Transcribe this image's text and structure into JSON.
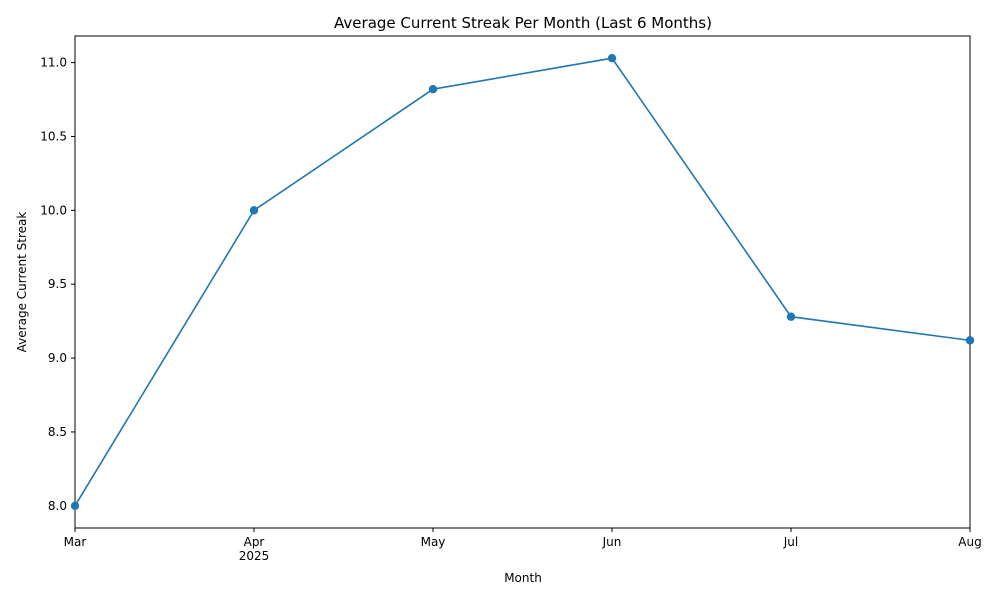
{
  "chart_data": {
    "type": "line",
    "title": "Average Current Streak Per Month (Last 6 Months)",
    "xlabel": "Month",
    "ylabel": "Average Current Streak",
    "x": [
      "Mar",
      "Apr",
      "May",
      "Jun",
      "Jul",
      "Aug"
    ],
    "x_year_label": "2025",
    "series": [
      {
        "values": [
          8.0,
          10.0,
          10.82,
          11.03,
          9.28,
          9.12
        ]
      }
    ],
    "ylim": [
      7.85,
      11.18
    ],
    "yticks": [
      "8.0",
      "8.5",
      "9.0",
      "9.5",
      "10.0",
      "10.5",
      "11.0"
    ],
    "grid": false,
    "legend": "none",
    "colors": {
      "line": "#1f77b4",
      "marker": "#1f77b4",
      "axis": "#000000"
    }
  }
}
